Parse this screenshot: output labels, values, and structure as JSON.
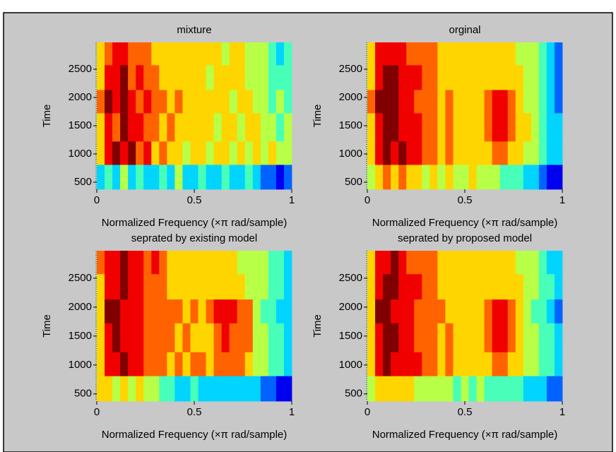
{
  "chart_data": [
    {
      "type": "heatmap",
      "title": "mixture",
      "xlabel": "Normalized Frequency  (×π rad/sample)",
      "ylabel": "Time",
      "xlim": [
        0,
        1
      ],
      "ylim": [
        375,
        2975
      ],
      "xticks": [
        0,
        0.5,
        1
      ],
      "yticks": [
        500,
        1000,
        1500,
        2000,
        2500
      ],
      "colormap": "jet",
      "clim": [
        0,
        9
      ],
      "x_bins": [
        0,
        0.04,
        0.08,
        0.12,
        0.16,
        0.2,
        0.24,
        0.28,
        0.32,
        0.36,
        0.4,
        0.44,
        0.48,
        0.52,
        0.56,
        0.6,
        0.64,
        0.68,
        0.72,
        0.76,
        0.8,
        0.84,
        0.88,
        0.92,
        0.96,
        1
      ],
      "y_bins": [
        375,
        812,
        1225,
        1725,
        2137,
        2575,
        2975
      ],
      "z": [
        [
          3,
          4,
          3,
          5,
          3,
          4,
          3,
          3,
          4,
          3,
          5,
          3,
          3,
          4,
          3,
          3,
          4,
          3,
          3,
          4,
          3,
          2,
          2,
          1,
          2
        ],
        [
          6,
          8,
          9,
          8,
          9,
          7,
          8,
          6,
          7,
          6,
          6,
          5,
          6,
          6,
          5,
          6,
          6,
          5,
          6,
          5,
          6,
          5,
          6,
          5,
          5
        ],
        [
          6,
          8,
          7,
          9,
          8,
          8,
          7,
          7,
          6,
          7,
          6,
          6,
          6,
          6,
          6,
          5,
          6,
          6,
          5,
          6,
          6,
          5,
          5,
          4,
          5
        ],
        [
          7,
          9,
          8,
          9,
          8,
          7,
          8,
          7,
          7,
          6,
          7,
          6,
          6,
          6,
          6,
          6,
          6,
          5,
          6,
          6,
          5,
          5,
          4,
          5,
          4
        ],
        [
          6,
          8,
          8,
          9,
          7,
          8,
          7,
          7,
          6,
          6,
          6,
          6,
          6,
          6,
          5,
          6,
          6,
          6,
          6,
          5,
          5,
          5,
          4,
          4,
          4
        ],
        [
          6,
          7,
          8,
          8,
          7,
          7,
          7,
          6,
          6,
          6,
          6,
          6,
          6,
          6,
          6,
          6,
          5,
          6,
          6,
          5,
          5,
          5,
          4,
          3,
          4
        ]
      ]
    },
    {
      "type": "heatmap",
      "title": "orginal",
      "xlabel": "Normalized Frequency  (×π rad/sample)",
      "ylabel": "Time",
      "xlim": [
        0,
        1
      ],
      "ylim": [
        375,
        2975
      ],
      "xticks": [
        0,
        0.5,
        1
      ],
      "yticks": [
        500,
        1000,
        1500,
        2000,
        2500
      ],
      "colormap": "jet",
      "clim": [
        0,
        9
      ],
      "x_bins": [
        0,
        0.04,
        0.08,
        0.12,
        0.16,
        0.2,
        0.24,
        0.28,
        0.32,
        0.36,
        0.4,
        0.44,
        0.48,
        0.52,
        0.56,
        0.6,
        0.64,
        0.68,
        0.72,
        0.76,
        0.8,
        0.84,
        0.88,
        0.92,
        0.96,
        1
      ],
      "y_bins": [
        375,
        812,
        1225,
        1725,
        2137,
        2575,
        2975
      ],
      "z": [
        [
          5,
          6,
          7,
          6,
          7,
          6,
          6,
          5,
          6,
          5,
          6,
          5,
          5,
          6,
          5,
          5,
          5,
          4,
          4,
          4,
          3,
          3,
          2,
          1,
          1
        ],
        [
          6,
          8,
          9,
          8,
          9,
          8,
          8,
          7,
          7,
          6,
          7,
          6,
          6,
          6,
          6,
          6,
          7,
          7,
          6,
          6,
          5,
          5,
          4,
          3,
          3
        ],
        [
          6,
          8,
          9,
          9,
          8,
          8,
          8,
          7,
          7,
          6,
          7,
          6,
          6,
          6,
          6,
          7,
          8,
          8,
          7,
          6,
          6,
          5,
          4,
          3,
          3
        ],
        [
          7,
          9,
          9,
          9,
          8,
          8,
          7,
          7,
          7,
          6,
          7,
          6,
          6,
          6,
          6,
          7,
          8,
          8,
          7,
          6,
          5,
          5,
          4,
          3,
          2
        ],
        [
          6,
          8,
          9,
          9,
          8,
          8,
          8,
          7,
          7,
          6,
          6,
          6,
          6,
          6,
          6,
          6,
          6,
          6,
          6,
          6,
          5,
          5,
          4,
          3,
          2
        ],
        [
          6,
          8,
          8,
          8,
          8,
          7,
          7,
          7,
          7,
          6,
          6,
          6,
          6,
          6,
          6,
          6,
          6,
          6,
          6,
          5,
          5,
          5,
          4,
          3,
          2
        ]
      ]
    },
    {
      "type": "heatmap",
      "title": "seprated by existing model",
      "xlabel": "Normalized Frequency  (×π rad/sample)",
      "ylabel": "Time",
      "xlim": [
        0,
        1
      ],
      "ylim": [
        375,
        2975
      ],
      "xticks": [
        0,
        0.5,
        1
      ],
      "yticks": [
        500,
        1000,
        1500,
        2000,
        2500
      ],
      "colormap": "jet",
      "clim": [
        0,
        9
      ],
      "x_bins": [
        0,
        0.04,
        0.08,
        0.12,
        0.16,
        0.2,
        0.24,
        0.28,
        0.32,
        0.36,
        0.4,
        0.44,
        0.48,
        0.52,
        0.56,
        0.6,
        0.64,
        0.68,
        0.72,
        0.76,
        0.8,
        0.84,
        0.88,
        0.92,
        0.96,
        1
      ],
      "y_bins": [
        375,
        812,
        1225,
        1725,
        2137,
        2575,
        2975
      ],
      "z": [
        [
          6,
          6,
          5,
          6,
          5,
          6,
          5,
          5,
          4,
          4,
          3,
          3,
          4,
          3,
          3,
          3,
          3,
          3,
          3,
          3,
          3,
          2,
          2,
          1,
          1
        ],
        [
          6,
          8,
          8,
          9,
          8,
          8,
          7,
          7,
          7,
          6,
          7,
          6,
          7,
          7,
          6,
          7,
          7,
          7,
          7,
          6,
          5,
          5,
          4,
          4,
          3
        ],
        [
          6,
          8,
          9,
          8,
          8,
          8,
          7,
          7,
          7,
          7,
          6,
          7,
          6,
          6,
          6,
          7,
          8,
          7,
          7,
          7,
          5,
          5,
          4,
          4,
          3
        ],
        [
          6,
          9,
          9,
          8,
          8,
          8,
          7,
          7,
          7,
          7,
          7,
          6,
          7,
          6,
          7,
          8,
          8,
          8,
          7,
          7,
          5,
          4,
          4,
          3,
          3
        ],
        [
          6,
          8,
          8,
          9,
          8,
          8,
          7,
          7,
          7,
          6,
          6,
          6,
          6,
          6,
          6,
          6,
          6,
          6,
          6,
          5,
          5,
          5,
          4,
          4,
          3
        ],
        [
          7,
          8,
          8,
          9,
          8,
          8,
          7,
          8,
          7,
          6,
          6,
          6,
          6,
          6,
          6,
          6,
          6,
          6,
          5,
          5,
          5,
          5,
          4,
          4,
          3
        ]
      ]
    },
    {
      "type": "heatmap",
      "title": "seprated by proposed model",
      "xlabel": "Normalized Frequency  (×π rad/sample)",
      "ylabel": "Time",
      "xlim": [
        0,
        1
      ],
      "ylim": [
        375,
        2975
      ],
      "xticks": [
        0,
        0.5,
        1
      ],
      "yticks": [
        500,
        1000,
        1500,
        2000,
        2500
      ],
      "colormap": "jet",
      "clim": [
        0,
        9
      ],
      "x_bins": [
        0,
        0.04,
        0.08,
        0.12,
        0.16,
        0.2,
        0.24,
        0.28,
        0.32,
        0.36,
        0.4,
        0.44,
        0.48,
        0.52,
        0.56,
        0.6,
        0.64,
        0.68,
        0.72,
        0.76,
        0.8,
        0.84,
        0.88,
        0.92,
        0.96,
        1
      ],
      "y_bins": [
        375,
        812,
        1225,
        1725,
        2137,
        2575,
        2975
      ],
      "z": [
        [
          5,
          6,
          6,
          6,
          6,
          6,
          5,
          5,
          5,
          5,
          5,
          4,
          5,
          4,
          5,
          4,
          4,
          4,
          4,
          4,
          3,
          3,
          3,
          2,
          2
        ],
        [
          6,
          8,
          9,
          8,
          8,
          8,
          8,
          7,
          7,
          6,
          7,
          6,
          6,
          6,
          6,
          6,
          7,
          7,
          6,
          6,
          5,
          5,
          4,
          4,
          3
        ],
        [
          6,
          8,
          9,
          9,
          8,
          8,
          7,
          7,
          7,
          6,
          7,
          6,
          6,
          6,
          6,
          7,
          8,
          8,
          7,
          6,
          5,
          5,
          4,
          4,
          3
        ],
        [
          6,
          9,
          9,
          8,
          8,
          8,
          7,
          7,
          7,
          7,
          6,
          6,
          6,
          6,
          6,
          7,
          8,
          8,
          7,
          6,
          5,
          4,
          4,
          3,
          2
        ],
        [
          6,
          8,
          9,
          9,
          8,
          8,
          8,
          7,
          7,
          6,
          6,
          6,
          6,
          6,
          6,
          6,
          6,
          6,
          6,
          6,
          5,
          5,
          4,
          4,
          3
        ],
        [
          6,
          8,
          8,
          9,
          8,
          7,
          7,
          7,
          7,
          6,
          6,
          6,
          6,
          6,
          6,
          6,
          6,
          6,
          6,
          5,
          5,
          5,
          4,
          3,
          3
        ]
      ]
    }
  ]
}
